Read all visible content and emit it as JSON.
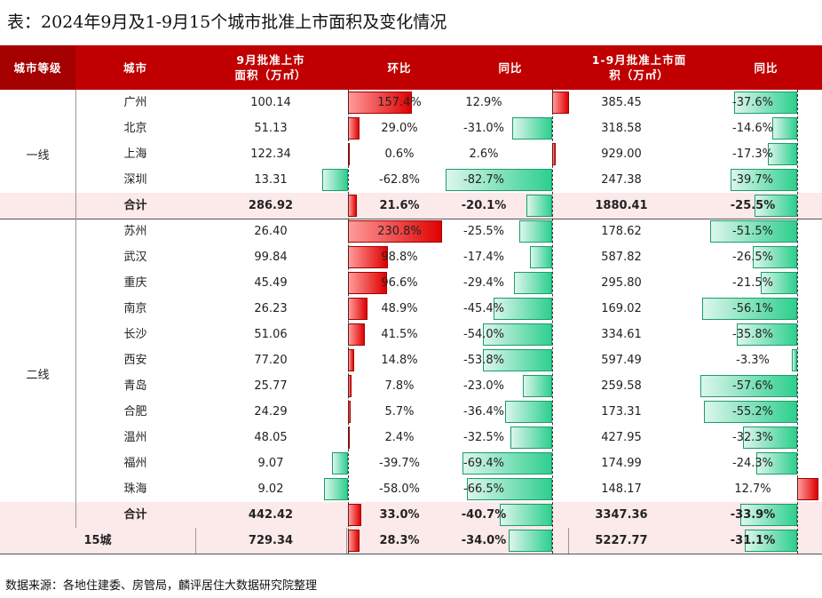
{
  "title": "表：2024年9月及1-9月15个城市批准上市面积及变化情况",
  "headers": {
    "tier": "城市等级",
    "city": "城市",
    "area": "9月批准上市面积（万㎡）",
    "mom": "环比",
    "yoy": "同比",
    "ytd_area": "1-9月批准上市面积（万㎡）",
    "ytd_yoy": "同比"
  },
  "tier1": {
    "label": "一线",
    "rows": [
      {
        "city": "广州",
        "area": "100.14",
        "mom": "157.4%",
        "yoy": "12.9%",
        "ytd": "385.45",
        "ytd_yoy": "-37.6%"
      },
      {
        "city": "北京",
        "area": "51.13",
        "mom": "29.0%",
        "yoy": "-31.0%",
        "ytd": "318.58",
        "ytd_yoy": "-14.6%"
      },
      {
        "city": "上海",
        "area": "122.34",
        "mom": "0.6%",
        "yoy": "2.6%",
        "ytd": "929.00",
        "ytd_yoy": "-17.3%"
      },
      {
        "city": "深圳",
        "area": "13.31",
        "mom": "-62.8%",
        "yoy": "-82.7%",
        "ytd": "247.38",
        "ytd_yoy": "-39.7%"
      }
    ],
    "sum": {
      "city": "合计",
      "area": "286.92",
      "mom": "21.6%",
      "yoy": "-20.1%",
      "ytd": "1880.41",
      "ytd_yoy": "-25.5%"
    }
  },
  "tier2": {
    "label": "二线",
    "rows": [
      {
        "city": "苏州",
        "area": "26.40",
        "mom": "230.8%",
        "yoy": "-25.5%",
        "ytd": "178.62",
        "ytd_yoy": "-51.5%"
      },
      {
        "city": "武汉",
        "area": "99.84",
        "mom": "98.8%",
        "yoy": "-17.4%",
        "ytd": "587.82",
        "ytd_yoy": "-26.5%"
      },
      {
        "city": "重庆",
        "area": "45.49",
        "mom": "96.6%",
        "yoy": "-29.4%",
        "ytd": "295.80",
        "ytd_yoy": "-21.5%"
      },
      {
        "city": "南京",
        "area": "26.23",
        "mom": "48.9%",
        "yoy": "-45.4%",
        "ytd": "169.02",
        "ytd_yoy": "-56.1%"
      },
      {
        "city": "长沙",
        "area": "51.06",
        "mom": "41.5%",
        "yoy": "-54.0%",
        "ytd": "334.61",
        "ytd_yoy": "-35.8%"
      },
      {
        "city": "西安",
        "area": "77.20",
        "mom": "14.8%",
        "yoy": "-53.8%",
        "ytd": "597.49",
        "ytd_yoy": "-3.3%"
      },
      {
        "city": "青岛",
        "area": "25.77",
        "mom": "7.8%",
        "yoy": "-23.0%",
        "ytd": "259.58",
        "ytd_yoy": "-57.6%"
      },
      {
        "city": "合肥",
        "area": "24.29",
        "mom": "5.7%",
        "yoy": "-36.4%",
        "ytd": "173.31",
        "ytd_yoy": "-55.2%"
      },
      {
        "city": "温州",
        "area": "48.05",
        "mom": "2.4%",
        "yoy": "-32.5%",
        "ytd": "427.95",
        "ytd_yoy": "-32.3%"
      },
      {
        "city": "福州",
        "area": "9.07",
        "mom": "-39.7%",
        "yoy": "-69.4%",
        "ytd": "174.99",
        "ytd_yoy": "-24.3%"
      },
      {
        "city": "珠海",
        "area": "9.02",
        "mom": "-58.0%",
        "yoy": "-66.5%",
        "ytd": "148.17",
        "ytd_yoy": "12.7%"
      }
    ],
    "sum": {
      "city": "合计",
      "area": "442.42",
      "mom": "33.0%",
      "yoy": "-40.7%",
      "ytd": "3347.36",
      "ytd_yoy": "-33.9%"
    }
  },
  "total": {
    "city": "15城",
    "area": "729.34",
    "mom": "28.3%",
    "yoy": "-34.0%",
    "ytd": "5227.77",
    "ytd_yoy": "-31.1%"
  },
  "source": "数据来源：各地住建委、房管局，麟评居住大数据研究院整理",
  "colors": {
    "header": "#C00000",
    "positive": "#e00000",
    "negative": "#2ecf8e",
    "sum_bg": "#FCE9E9"
  }
}
